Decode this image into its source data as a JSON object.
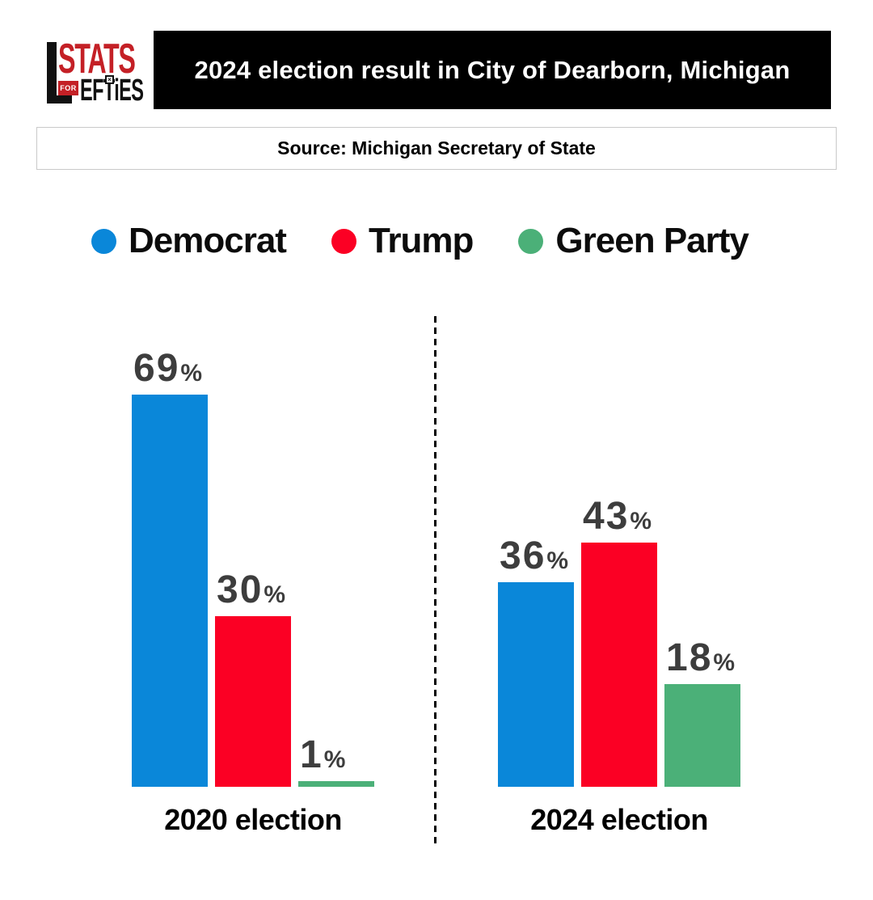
{
  "header": {
    "logo": {
      "stats": "STATS",
      "for_text": "FOR",
      "lefties": "EFTiES",
      "ballot_mark": "×",
      "brand_red": "#c42026",
      "brand_black": "#111111"
    },
    "title": "2024 election result in City of Dearborn, Michigan",
    "source": "Source: Michigan Secretary of State"
  },
  "legend": {
    "items": [
      {
        "label": "Democrat",
        "color": "#0a87d9"
      },
      {
        "label": "Trump",
        "color": "#fb0024"
      },
      {
        "label": "Green Party",
        "color": "#4bb078"
      }
    ]
  },
  "chart_data": {
    "type": "bar",
    "categories": [
      "2020 election",
      "2024 election"
    ],
    "series": [
      {
        "name": "Democrat",
        "color": "#0a87d9",
        "values": [
          69,
          36
        ]
      },
      {
        "name": "Trump",
        "color": "#fb0024",
        "values": [
          30,
          43
        ]
      },
      {
        "name": "Green Party",
        "color": "#4bb078",
        "values": [
          1,
          18
        ]
      }
    ],
    "value_suffix": "%",
    "value_label_color": "#3d3d3d",
    "ylim": [
      0,
      75
    ],
    "grid": false,
    "axes_shown": false,
    "legend_position": "top",
    "panel_divider": "vertical-dashed"
  }
}
